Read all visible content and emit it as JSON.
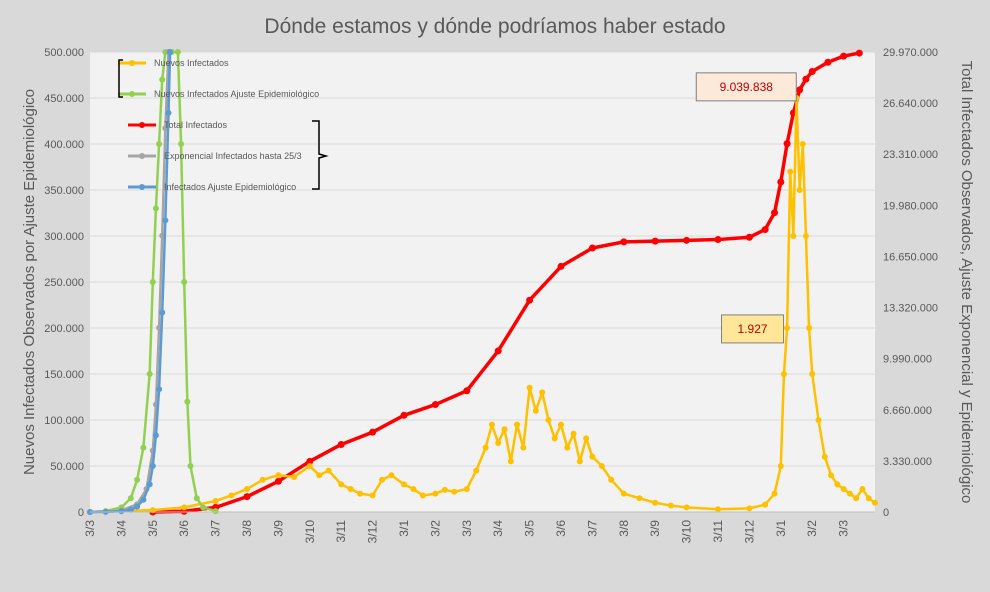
{
  "chart_data": {
    "type": "line",
    "title": "Dónde estamos y dónde podríamos haber estado",
    "ylabel": "Nuevos Infectados Observados por Ajuste Epidemiológico",
    "y2label": "Total Infectados Observados, Ajuste Exponencial y Epidemiológico",
    "ylim": [
      0,
      500000
    ],
    "y2lim": [
      0,
      29970000
    ],
    "yticks": [
      "0",
      "50.000",
      "100.000",
      "150.000",
      "200.000",
      "250.000",
      "300.000",
      "350.000",
      "400.000",
      "450.000",
      "500.000"
    ],
    "y2ticks": [
      "0",
      "3.330.000",
      "6.660.000",
      "9.990.000",
      "13.320.000",
      "16.650.000",
      "19.980.000",
      "23.310.000",
      "26.640.000",
      "29.970.000"
    ],
    "x_categories": [
      "3/3",
      "3/4",
      "3/5",
      "3/6",
      "3/7",
      "3/8",
      "3/9",
      "3/10",
      "3/11",
      "3/12",
      "3/1",
      "3/2",
      "3/3",
      "3/4",
      "3/5",
      "3/6",
      "3/7",
      "3/8",
      "3/9",
      "3/10",
      "3/11",
      "3/12",
      "3/1",
      "3/2",
      "3/3"
    ],
    "grid": true,
    "legend_position": "top-left",
    "colors": {
      "background": "#d9d9d9",
      "plot_background": "#f2f2f2",
      "gridline": "#d9d9d9",
      "nuevos": "#ffc000",
      "nuevos_ajuste": "#92d050",
      "total": "#ff0000",
      "exponencial": "#a5a5a5",
      "total_ajuste": "#5b9bd5"
    },
    "series": [
      {
        "name": "Nuevos Infectados",
        "axis": "left",
        "color": "#ffc000",
        "x": [
          0,
          2,
          3,
          4,
          4.5,
          5,
          5.5,
          6,
          6.5,
          7,
          7.3,
          7.6,
          8,
          8.3,
          8.6,
          9,
          9.3,
          9.6,
          10,
          10.3,
          10.6,
          11,
          11.3,
          11.6,
          12,
          12.3,
          12.6,
          12.8,
          13,
          13.2,
          13.4,
          13.6,
          13.8,
          14,
          14.2,
          14.4,
          14.6,
          14.8,
          15,
          15.2,
          15.4,
          15.6,
          15.8,
          16,
          16.3,
          16.6,
          17,
          17.5,
          18,
          18.5,
          19,
          20,
          21,
          21.5,
          21.8,
          22,
          22.1,
          22.2,
          22.3,
          22.4,
          22.5,
          22.6,
          22.7,
          22.8,
          22.9,
          23,
          23.2,
          23.4,
          23.6,
          23.8,
          24,
          24.2,
          24.4,
          24.6,
          24.8,
          25
        ],
        "values": [
          0,
          2000,
          5000,
          12000,
          18000,
          25000,
          35000,
          40000,
          38000,
          50000,
          40000,
          45000,
          30000,
          25000,
          20000,
          18000,
          35000,
          40000,
          30000,
          25000,
          18000,
          20000,
          24000,
          22000,
          25000,
          45000,
          70000,
          95000,
          75000,
          90000,
          55000,
          95000,
          70000,
          135000,
          110000,
          130000,
          100000,
          80000,
          95000,
          70000,
          85000,
          55000,
          80000,
          60000,
          50000,
          35000,
          20000,
          15000,
          10000,
          7000,
          5000,
          3000,
          4000,
          8000,
          20000,
          50000,
          150000,
          200000,
          370000,
          300000,
          450000,
          350000,
          400000,
          300000,
          200000,
          150000,
          100000,
          60000,
          40000,
          30000,
          25000,
          20000,
          15000,
          25000,
          15000,
          10000
        ]
      },
      {
        "name": "Nuevos Infectados Ajuste Epidemiológico",
        "axis": "left",
        "color": "#92d050",
        "x": [
          0,
          0.5,
          1,
          1.3,
          1.5,
          1.7,
          1.9,
          2.0,
          2.1,
          2.2,
          2.3,
          2.4,
          2.5,
          2.6,
          2.8,
          2.9,
          3.0,
          3.1,
          3.2,
          3.4,
          3.6,
          4.0
        ],
        "values": [
          0,
          1000,
          5000,
          15000,
          35000,
          70000,
          150000,
          250000,
          330000,
          400000,
          470000,
          500000,
          500000,
          500000,
          500000,
          400000,
          250000,
          120000,
          50000,
          15000,
          5000,
          1000
        ]
      },
      {
        "name": "Total Infectados",
        "axis": "right",
        "color": "#ff0000",
        "x": [
          2,
          3,
          4,
          5,
          6,
          7,
          8,
          9,
          10,
          11,
          12,
          13,
          14,
          15,
          16,
          17,
          18,
          19,
          20,
          21,
          21.5,
          21.8,
          22,
          22.2,
          22.4,
          22.6,
          22.8,
          23,
          23.5,
          24,
          24.5
        ],
        "values": [
          0,
          50000,
          300000,
          1000000,
          2000000,
          3300000,
          4400000,
          5200000,
          6300000,
          7000000,
          7900000,
          10500000,
          13800000,
          16000000,
          17200000,
          17600000,
          17650000,
          17700000,
          17750000,
          17900000,
          18400000,
          19500000,
          21500000,
          24000000,
          26000000,
          27500000,
          28200000,
          28700000,
          29300000,
          29700000,
          29900000
        ]
      },
      {
        "name": "Exponencial Infectados hasta 25/3",
        "axis": "right",
        "color": "#a5a5a5",
        "x": [
          0,
          1,
          1.5,
          1.8,
          2.0,
          2.1,
          2.2,
          2.3,
          2.4,
          2.5
        ],
        "values": [
          0,
          100000,
          500000,
          1500000,
          4000000,
          7000000,
          12000000,
          18000000,
          25000000,
          29970000
        ]
      },
      {
        "name": "Infectados Ajuste Epidemiológico",
        "axis": "right",
        "color": "#5b9bd5",
        "x": [
          0,
          0.5,
          1,
          1.3,
          1.5,
          1.7,
          1.9,
          2.0,
          2.1,
          2.2,
          2.3,
          2.4,
          2.5,
          2.55
        ],
        "values": [
          0,
          10000,
          50000,
          150000,
          350000,
          800000,
          1800000,
          3000000,
          5000000,
          8000000,
          13000000,
          19000000,
          26000000,
          29970000
        ]
      }
    ],
    "annotations": [
      {
        "text": "9.039.838",
        "x": 20.9,
        "y2": 27700000
      },
      {
        "text": "1.927",
        "x": 21.1,
        "y": 199000
      }
    ]
  }
}
